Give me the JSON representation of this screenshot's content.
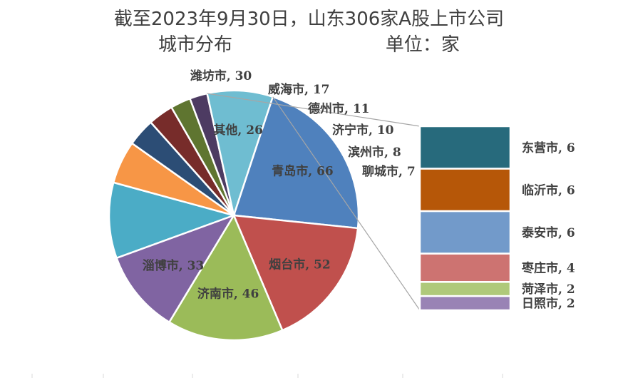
{
  "chart_data": {
    "type": "pie",
    "title_line1": "截至2023年9月30日，山东306家A股上市公司",
    "title_line2": "城市分布                          单位：家",
    "slices": [
      {
        "label": "潍坊市",
        "value": 30,
        "color": "#4bacc6"
      },
      {
        "label": "威海市",
        "value": 17,
        "color": "#f79646"
      },
      {
        "label": "德州市",
        "value": 11,
        "color": "#2c4d75"
      },
      {
        "label": "济宁市",
        "value": 10,
        "color": "#772c2a"
      },
      {
        "label": "滨州市",
        "value": 8,
        "color": "#5f7530"
      },
      {
        "label": "聊城市",
        "value": 7,
        "color": "#4d3b62"
      },
      {
        "label": "其他",
        "value": 26,
        "color": "#6fbdd1"
      },
      {
        "label": "青岛市",
        "value": 66,
        "color": "#4f81bd"
      },
      {
        "label": "烟台市",
        "value": 52,
        "color": "#c0504d"
      },
      {
        "label": "济南市",
        "value": 46,
        "color": "#9bbb59"
      },
      {
        "label": "淄博市",
        "value": 33,
        "color": "#8064a2"
      }
    ],
    "other_breakdown": [
      {
        "label": "东营市",
        "value": 6,
        "color": "#276a7c"
      },
      {
        "label": "临沂市",
        "value": 6,
        "color": "#b65708"
      },
      {
        "label": "泰安市",
        "value": 6,
        "color": "#729aca"
      },
      {
        "label": "枣庄市",
        "value": 4,
        "color": "#cd7371"
      },
      {
        "label": "菏泽市",
        "value": 2,
        "color": "#afc97a"
      },
      {
        "label": "日照市",
        "value": 2,
        "color": "#9983b5"
      }
    ],
    "separator": ", "
  }
}
